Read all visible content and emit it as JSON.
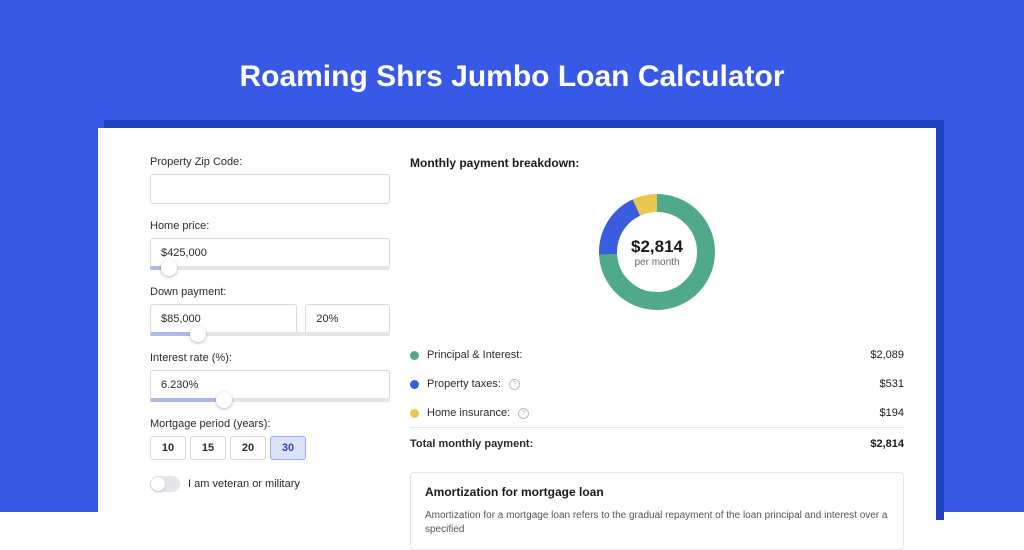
{
  "colors": {
    "outer_bg": "#3759e5",
    "shadow_bg": "#2040c0",
    "slider_fill": "#aeb9f0",
    "period_active_bg": "#dbe2fb",
    "period_active_border": "#9aa9f0",
    "period_active_text": "#2b46c9",
    "series_principal": "#4fa98a",
    "series_taxes": "#3a5de0",
    "series_insurance": "#eac54f"
  },
  "header": {
    "title": "Roaming Shrs Jumbo Loan Calculator"
  },
  "form": {
    "zip_label": "Property Zip Code:",
    "zip_value": "",
    "home_price_label": "Home price:",
    "home_price_value": "$425,000",
    "home_price_slider_pct": 8,
    "down_payment_label": "Down payment:",
    "down_payment_value": "$85,000",
    "down_payment_pct": "20%",
    "down_payment_slider_pct": 20,
    "interest_label": "Interest rate (%):",
    "interest_value": "6.230%",
    "interest_slider_pct": 31,
    "period_label": "Mortgage period (years):",
    "periods": [
      "10",
      "15",
      "20",
      "30"
    ],
    "period_active_index": 3,
    "veteran_label": "I am veteran or military",
    "veteran_on": false
  },
  "breakdown": {
    "title": "Monthly payment breakdown:",
    "donut": {
      "amount": "$2,814",
      "sub": "per month",
      "slices": [
        {
          "key": "principal",
          "value": 2089,
          "color_key": "series_principal"
        },
        {
          "key": "taxes",
          "value": 531,
          "color_key": "series_taxes"
        },
        {
          "key": "insurance",
          "value": 194,
          "color_key": "series_insurance"
        }
      ],
      "thickness": 18
    },
    "rows": [
      {
        "label": "Principal & Interest:",
        "value": "$2,089",
        "color_key": "series_principal",
        "info": false
      },
      {
        "label": "Property taxes:",
        "value": "$531",
        "color_key": "series_taxes",
        "info": true
      },
      {
        "label": "Home insurance:",
        "value": "$194",
        "color_key": "series_insurance",
        "info": true
      }
    ],
    "total_label": "Total monthly payment:",
    "total_value": "$2,814"
  },
  "amortization": {
    "title": "Amortization for mortgage loan",
    "text": "Amortization for a mortgage loan refers to the gradual repayment of the loan principal and interest over a specified"
  }
}
